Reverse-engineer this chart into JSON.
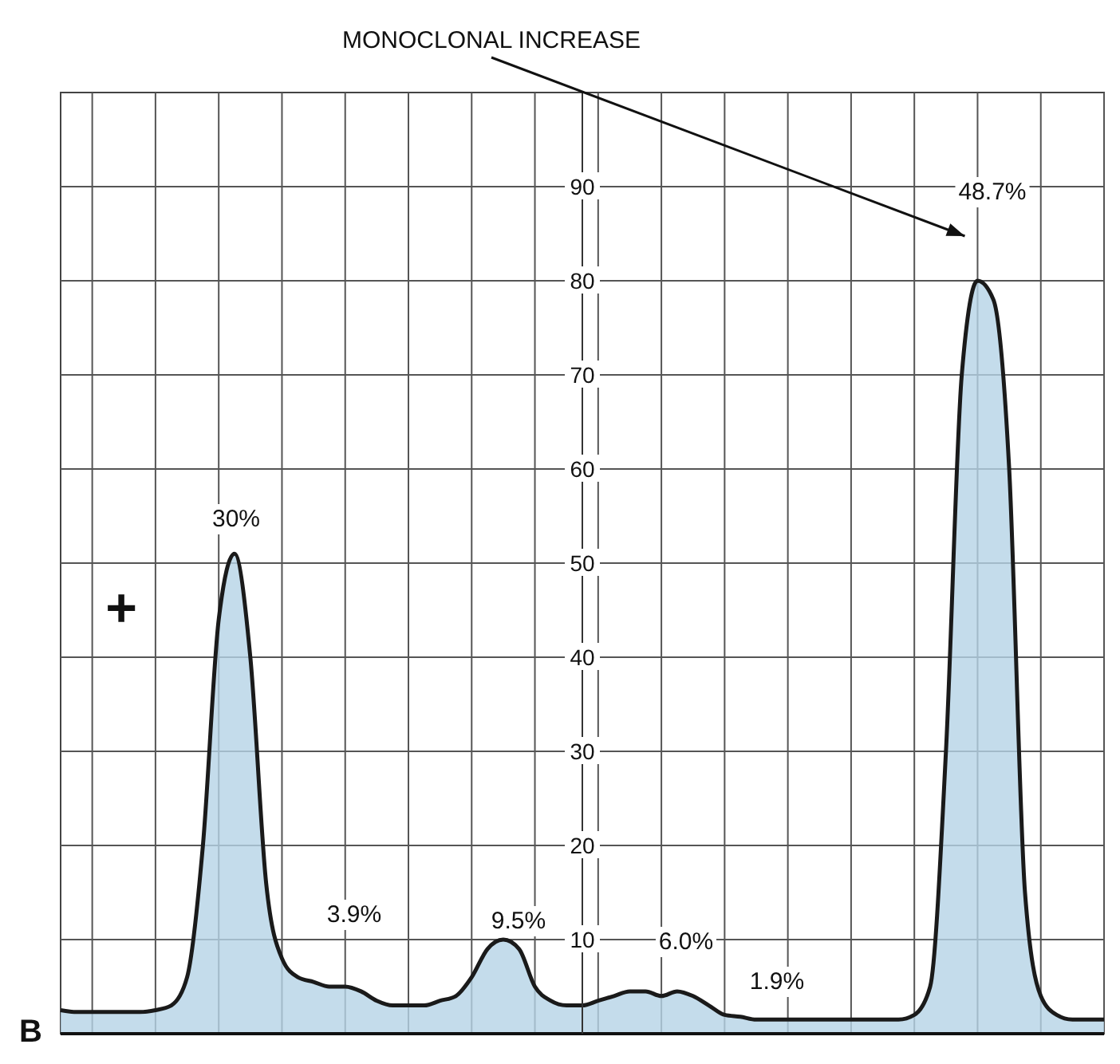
{
  "chart_data": {
    "type": "area",
    "annotations": [
      "MONOCLONAL INCREASE",
      "B",
      "+",
      "30%",
      "3.9%",
      "9.5%",
      "6.0%",
      "1.9%",
      "48.7%"
    ],
    "categories": [
      null,
      null,
      null,
      null,
      null,
      null,
      null,
      null,
      null,
      null,
      null,
      null,
      null,
      null,
      null,
      null,
      null,
      null,
      null,
      null,
      null,
      null,
      null,
      null,
      null,
      null,
      null,
      null,
      null,
      null,
      null,
      null,
      null,
      null,
      null,
      null,
      null,
      null,
      null,
      null,
      null,
      null,
      null,
      null,
      null,
      null,
      null,
      null,
      null,
      null,
      null,
      null,
      null,
      null,
      null,
      null,
      null,
      null,
      null,
      null,
      null,
      null,
      null,
      null,
      null,
      null,
      null
    ],
    "series": [
      {
        "color": "#b5d3e6",
        "values": [
          2.5,
          2.3,
          2.3,
          2.3,
          2.3,
          2.3,
          2.5,
          3,
          6,
          20,
          44,
          51,
          40,
          16,
          8,
          6,
          5.5,
          5,
          5,
          4.5,
          3.5,
          3,
          3,
          3,
          3.5,
          4,
          6,
          9,
          10,
          9,
          5,
          3.5,
          3,
          3,
          3.5,
          4,
          4.5,
          4.5,
          4,
          4.5,
          4,
          3,
          2,
          1.8,
          1.5,
          1.5,
          1.5,
          1.5,
          1.5,
          1.5,
          1.5,
          1.5,
          1.5,
          1.5,
          2,
          5,
          30,
          70,
          80,
          78,
          60,
          15,
          4,
          2,
          1.5,
          1.5,
          1.5
        ]
      }
    ],
    "ylim": [
      0,
      100
    ],
    "yticks": [
      10,
      20,
      30,
      40,
      50,
      60,
      70,
      80,
      90
    ],
    "grid": true
  }
}
